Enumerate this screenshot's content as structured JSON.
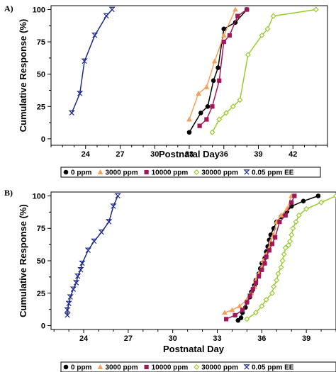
{
  "chart_data": [
    {
      "panel_label": "A)",
      "type": "line",
      "xlabel": "Postnatal Day",
      "ylabel": "Cumulative Response (%)",
      "xlim": [
        21,
        45
      ],
      "ylim": [
        -5,
        103
      ],
      "xticks": [
        24,
        27,
        30,
        33,
        36,
        39,
        42
      ],
      "xtick_labels": [
        "24",
        "27",
        "30",
        "33",
        "36",
        "39",
        "42"
      ],
      "yticks": [
        0,
        25,
        50,
        75,
        100
      ],
      "ytick_labels": [
        "0",
        "25",
        "50",
        "75",
        "100"
      ],
      "legend": {
        "placement": "bottom",
        "entries": [
          "0 ppm",
          "3000 ppm",
          "10000 ppm",
          "30000 ppm",
          "0.05 ppm EE"
        ]
      },
      "series": [
        {
          "name": "0 ppm",
          "color": "#000000",
          "marker": "circle",
          "x": [
            33.0,
            34.0,
            34.6,
            35.1,
            35.5,
            36.0,
            37.0,
            38.0
          ],
          "y": [
            5,
            20,
            25,
            45,
            55,
            85,
            90,
            100
          ]
        },
        {
          "name": "3000 ppm",
          "color": "#f5a05a",
          "marker": "triangle",
          "x": [
            33.0,
            33.8,
            34.5,
            35.2,
            36.0,
            37.0
          ],
          "y": [
            15,
            35,
            40,
            60,
            80,
            100
          ]
        },
        {
          "name": "10000 ppm",
          "color": "#a0175a",
          "marker": "square",
          "x": [
            33.9,
            34.5,
            35.0,
            35.6,
            36.0,
            36.5,
            37.2,
            38.0
          ],
          "y": [
            10,
            15,
            25,
            45,
            75,
            80,
            95,
            100
          ]
        },
        {
          "name": "30000 ppm",
          "color": "#99cc33",
          "marker": "diamond",
          "x": [
            35.0,
            35.6,
            36.2,
            36.8,
            37.4,
            38.1,
            39.3,
            39.8,
            40.3,
            44.0
          ],
          "y": [
            5,
            15,
            20,
            25,
            30,
            65,
            80,
            85,
            95,
            100
          ]
        },
        {
          "name": "0.05 ppm EE",
          "color": "#1e2a8c",
          "marker": "bowtie",
          "x": [
            22.8,
            23.5,
            23.9,
            24.8,
            25.8,
            26.3
          ],
          "y": [
            20,
            35,
            60,
            80,
            95,
            100
          ]
        }
      ]
    },
    {
      "panel_label": "B)",
      "type": "line",
      "xlabel": "Postnatal Day",
      "ylabel": "Cumulative Response (%)",
      "xlim": [
        21.8,
        41
      ],
      "ylim": [
        -3,
        103
      ],
      "xticks": [
        24,
        27,
        30,
        33,
        36,
        39
      ],
      "xtick_labels": [
        "24",
        "27",
        "30",
        "33",
        "36",
        "39"
      ],
      "yticks": [
        0,
        25,
        50,
        75,
        100
      ],
      "ytick_labels": [
        "0",
        "25",
        "50",
        "75",
        "100"
      ],
      "legend": {
        "placement": "bottom",
        "entries": [
          "0 ppm",
          "3000 ppm",
          "10000 ppm",
          "30000 ppm",
          "0.05 ppm EE"
        ]
      },
      "series": [
        {
          "name": "0 ppm",
          "color": "#000000",
          "marker": "circle",
          "x": [
            34.4,
            34.6,
            34.7,
            34.9,
            35.0,
            35.2,
            35.3,
            35.5,
            35.6,
            35.8,
            35.9,
            36.0,
            36.2,
            36.3,
            36.4,
            36.5,
            36.6,
            36.8,
            37.0,
            37.3,
            37.7,
            38.0,
            38.8,
            39.8
          ],
          "y": [
            4,
            6,
            10,
            14,
            18,
            22,
            26,
            31,
            35,
            40,
            44,
            48,
            52,
            57,
            61,
            66,
            70,
            75,
            80,
            84,
            88,
            92,
            96,
            100
          ]
        },
        {
          "name": "3000 ppm",
          "color": "#f5a05a",
          "marker": "triangle",
          "x": [
            33.5,
            34.0,
            34.5,
            35.0,
            35.3,
            35.5,
            35.6,
            35.8,
            36.0,
            36.1,
            36.3,
            36.5,
            36.6,
            36.8,
            37.0,
            37.3,
            37.7,
            38.0
          ],
          "y": [
            10,
            12,
            15,
            20,
            25,
            30,
            35,
            40,
            45,
            50,
            55,
            60,
            65,
            70,
            80,
            85,
            90,
            100
          ]
        },
        {
          "name": "10000 ppm",
          "color": "#a0175a",
          "marker": "square",
          "x": [
            33.6,
            34.2,
            34.7,
            35.0,
            35.2,
            35.4,
            35.6,
            35.8,
            36.0,
            36.2,
            36.3,
            36.5,
            36.7,
            36.9,
            37.2,
            37.6,
            38.0,
            38.2
          ],
          "y": [
            5,
            8,
            12,
            18,
            23,
            28,
            33,
            38,
            43,
            48,
            53,
            58,
            63,
            68,
            80,
            85,
            95,
            100
          ]
        },
        {
          "name": "30000 ppm",
          "color": "#99cc33",
          "marker": "diamond",
          "x": [
            35.0,
            35.6,
            36.0,
            36.3,
            36.7,
            36.8,
            37.0,
            37.1,
            37.3,
            37.4,
            37.5,
            37.6,
            37.8,
            37.9,
            38.0,
            38.1,
            38.3,
            38.5,
            39.0,
            40.0,
            41.0
          ],
          "y": [
            5,
            10,
            15,
            20,
            25,
            30,
            35,
            40,
            45,
            50,
            55,
            60,
            62,
            65,
            70,
            75,
            80,
            85,
            90,
            95,
            100
          ]
        },
        {
          "name": "0.05 ppm EE",
          "color": "#1e2a8c",
          "marker": "bowtie",
          "x": [
            22.9,
            22.9,
            23.0,
            23.1,
            23.3,
            23.5,
            23.6,
            23.8,
            23.9,
            24.3,
            24.7,
            25.2,
            25.7,
            26.0,
            26.3
          ],
          "y": [
            8,
            12,
            17,
            22,
            28,
            33,
            38,
            43,
            48,
            58,
            65,
            72,
            80,
            92,
            100
          ]
        }
      ]
    }
  ]
}
